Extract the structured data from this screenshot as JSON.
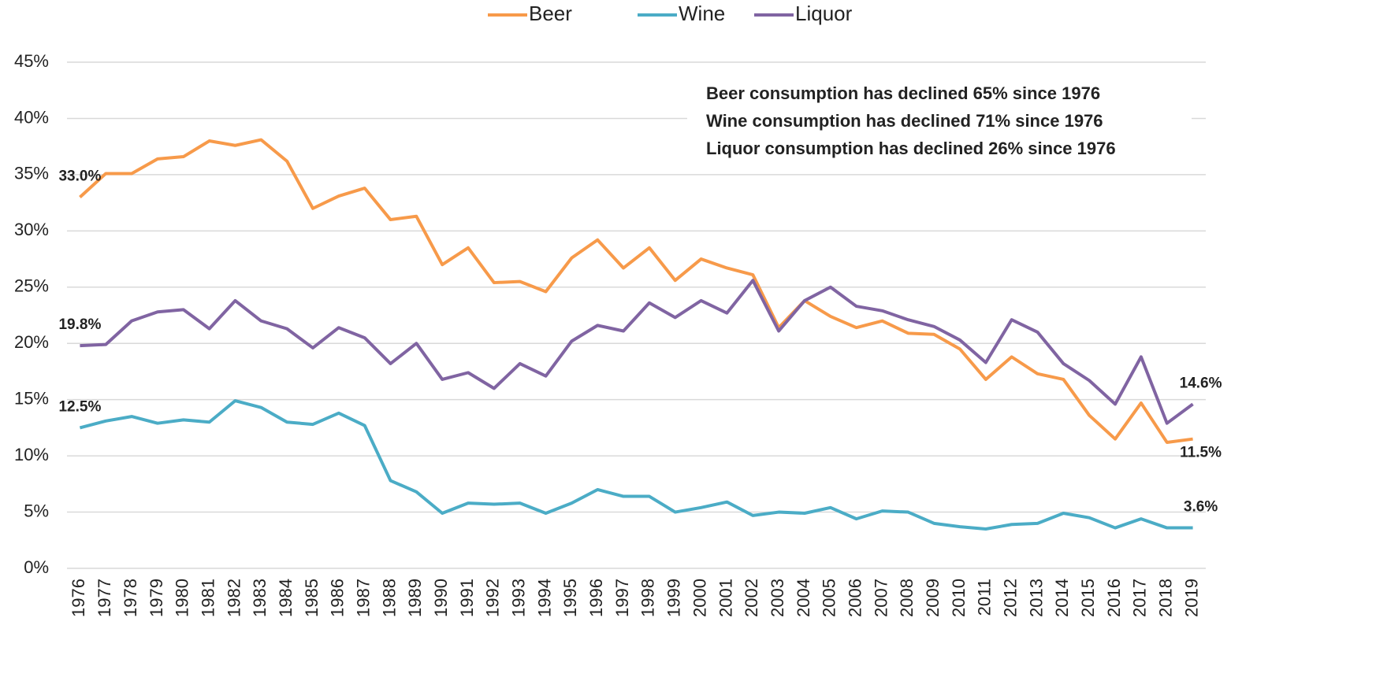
{
  "chart_data": {
    "type": "line",
    "categories": [
      "1976",
      "1977",
      "1978",
      "1979",
      "1980",
      "1981",
      "1982",
      "1983",
      "1984",
      "1985",
      "1986",
      "1987",
      "1988",
      "1989",
      "1990",
      "1991",
      "1992",
      "1993",
      "1994",
      "1995",
      "1996",
      "1997",
      "1998",
      "1999",
      "2000",
      "2001",
      "2002",
      "2003",
      "2004",
      "2005",
      "2006",
      "2007",
      "2008",
      "2009",
      "2010",
      "2011",
      "2012",
      "2013",
      "2014",
      "2015",
      "2016",
      "2017",
      "2018",
      "2019"
    ],
    "series": [
      {
        "name": "Beer",
        "color": "#f79a4a",
        "label_color": "#e8761e",
        "values": [
          33.0,
          35.1,
          35.1,
          36.4,
          36.6,
          38.0,
          37.6,
          38.1,
          36.2,
          32.0,
          33.1,
          33.8,
          31.0,
          31.3,
          27.0,
          28.5,
          25.4,
          25.5,
          24.6,
          27.6,
          29.2,
          26.7,
          28.5,
          25.6,
          27.5,
          26.7,
          26.1,
          21.4,
          23.8,
          22.4,
          21.4,
          22.0,
          20.9,
          20.8,
          19.5,
          16.8,
          18.8,
          17.3,
          16.8,
          13.6,
          11.5,
          14.7,
          11.2,
          11.5
        ],
        "value_labels": [
          "33.0%",
          null,
          null,
          null,
          null,
          null,
          null,
          null,
          null,
          null,
          null,
          null,
          null,
          null,
          null,
          null,
          null,
          null,
          null,
          null,
          null,
          null,
          null,
          null,
          null,
          null,
          null,
          null,
          null,
          null,
          null,
          null,
          null,
          null,
          null,
          null,
          null,
          null,
          null,
          null,
          null,
          null,
          null,
          "11.5%"
        ]
      },
      {
        "name": "Wine",
        "color": "#4bacc6",
        "label_color": "#31869b",
        "values": [
          12.5,
          13.1,
          13.5,
          12.9,
          13.2,
          13.0,
          14.9,
          14.3,
          13.0,
          12.8,
          13.8,
          12.7,
          7.8,
          6.8,
          4.9,
          5.8,
          5.7,
          5.8,
          4.9,
          5.8,
          7.0,
          6.4,
          6.4,
          5.0,
          5.4,
          5.9,
          4.7,
          5.0,
          4.9,
          5.4,
          4.4,
          5.1,
          5.0,
          4.0,
          3.7,
          3.5,
          3.9,
          4.0,
          4.9,
          4.5,
          3.6,
          4.4,
          3.6,
          3.6
        ],
        "value_labels": [
          "12.5%",
          null,
          null,
          null,
          null,
          null,
          null,
          null,
          null,
          null,
          null,
          null,
          null,
          null,
          null,
          null,
          null,
          null,
          null,
          null,
          null,
          null,
          null,
          null,
          null,
          null,
          null,
          null,
          null,
          null,
          null,
          null,
          null,
          null,
          null,
          null,
          null,
          null,
          null,
          null,
          null,
          null,
          null,
          "3.6%"
        ]
      },
      {
        "name": "Liquor",
        "color": "#8064a2",
        "label_color": "#6b4f92",
        "values": [
          19.8,
          19.9,
          22.0,
          22.8,
          23.0,
          21.3,
          23.8,
          22.0,
          21.3,
          19.6,
          21.4,
          20.5,
          18.2,
          20.0,
          16.8,
          17.4,
          16.0,
          18.2,
          17.1,
          20.2,
          21.6,
          21.1,
          23.6,
          22.3,
          23.8,
          22.7,
          25.6,
          21.1,
          23.8,
          25.0,
          23.3,
          22.9,
          22.1,
          21.5,
          20.3,
          18.3,
          22.1,
          21.0,
          18.2,
          16.7,
          14.6,
          18.8,
          12.9,
          14.6
        ],
        "value_labels": [
          "19.8%",
          null,
          null,
          null,
          null,
          null,
          null,
          null,
          null,
          null,
          null,
          null,
          null,
          null,
          null,
          null,
          null,
          null,
          null,
          null,
          null,
          null,
          null,
          null,
          null,
          null,
          null,
          null,
          null,
          null,
          null,
          null,
          null,
          null,
          null,
          null,
          null,
          null,
          null,
          null,
          null,
          null,
          null,
          "14.6%"
        ]
      }
    ],
    "ylim": [
      0,
      45
    ],
    "yticks": [
      {
        "value": 0,
        "label": "0%"
      },
      {
        "value": 5,
        "label": "5%"
      },
      {
        "value": 10,
        "label": "10%"
      },
      {
        "value": 15,
        "label": "15%"
      },
      {
        "value": 20,
        "label": "20%"
      },
      {
        "value": 25,
        "label": "25%"
      },
      {
        "value": 30,
        "label": "30%"
      },
      {
        "value": 35,
        "label": "35%"
      },
      {
        "value": 40,
        "label": "40%"
      },
      {
        "value": 45,
        "label": "45%"
      }
    ],
    "grid": true,
    "legend": "top",
    "annotations": [
      {
        "text": "Beer consumption has declined 65% since 1976",
        "color": "#e8761e"
      },
      {
        "text": "Wine consumption has declined 71% since 1976",
        "color": "#31869b"
      },
      {
        "text": "Liquor consumption has declined 26% since 1976",
        "color": "#6b4f92"
      }
    ]
  }
}
